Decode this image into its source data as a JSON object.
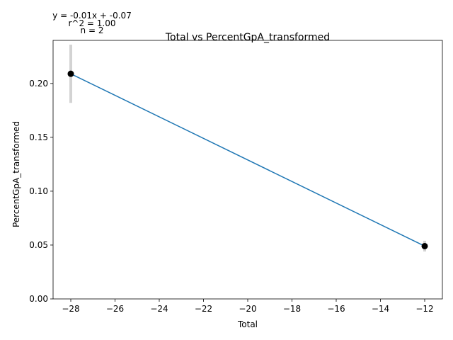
{
  "chart_data": {
    "type": "scatter",
    "title": "Total vs PercentGpA_transformed",
    "xlabel": "Total",
    "ylabel": "PercentGpA_transformed",
    "xlim": [
      -28.8,
      -11.2
    ],
    "ylim": [
      0.0,
      0.24
    ],
    "xticks": [
      -28,
      -26,
      -24,
      -22,
      -20,
      -18,
      -16,
      -14,
      -12
    ],
    "yticks": [
      0.0,
      0.05,
      0.1,
      0.15,
      0.2
    ],
    "xtick_labels": [
      "−28",
      "−26",
      "−24",
      "−22",
      "−20",
      "−18",
      "−16",
      "−14",
      "−12"
    ],
    "ytick_labels": [
      "0.00",
      "0.05",
      "0.10",
      "0.15",
      "0.20"
    ],
    "points": [
      {
        "x": -28,
        "y": 0.209,
        "err": 0.027
      },
      {
        "x": -12,
        "y": 0.049,
        "err": 0.005
      }
    ],
    "fit_line": {
      "x": [
        -28,
        -12
      ],
      "y": [
        0.209,
        0.049
      ]
    },
    "grid": false,
    "colors": {
      "line": "#1f77b4",
      "points": "#000000",
      "errorbars": "#d3d3d3"
    }
  },
  "annotations": {
    "equation": "y = -0.01x + -0.07",
    "r2": "r^2 = 1.00",
    "n": "n = 2"
  }
}
